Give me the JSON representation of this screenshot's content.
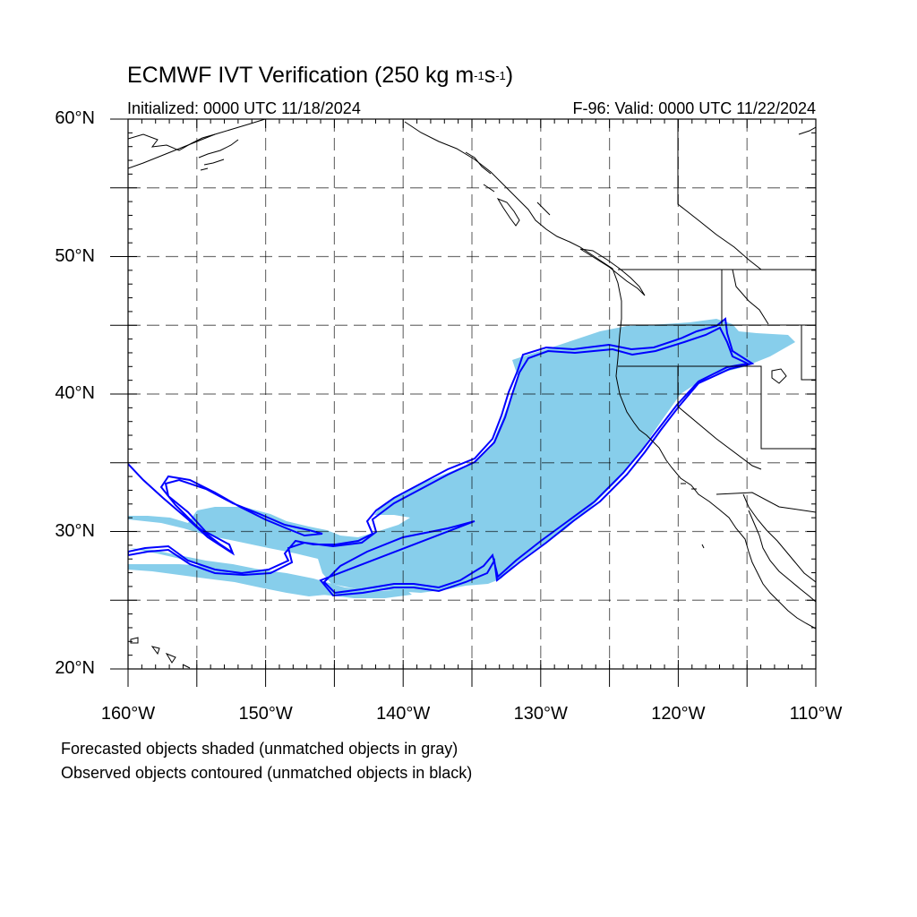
{
  "title": {
    "main": "ECMWF IVT Verification (250 kg m",
    "sup1": "-1",
    "mid": "s",
    "sup2": "-1",
    "end": ")"
  },
  "subtitle_left": "Initialized: 0000 UTC 11/18/2024",
  "subtitle_right": "F-96: Valid: 0000 UTC 11/22/2024",
  "lat_labels": [
    "60°N",
    "50°N",
    "40°N",
    "30°N",
    "20°N"
  ],
  "lon_labels": [
    "160°W",
    "150°W",
    "140°W",
    "130°W",
    "120°W",
    "110°W"
  ],
  "legend": {
    "line1": "Forecasted objects shaded (unmatched objects in gray)",
    "line2": "Observed objects contoured (unmatched objects in black)"
  },
  "colors": {
    "forecast_fill": "#87CEEB",
    "observed_contour": "#0000FF",
    "coastline": "#000000",
    "grid": "#000000"
  },
  "map_extent": {
    "lon_min": -160,
    "lon_max": -110,
    "lat_min": 20,
    "lat_max": 60
  }
}
